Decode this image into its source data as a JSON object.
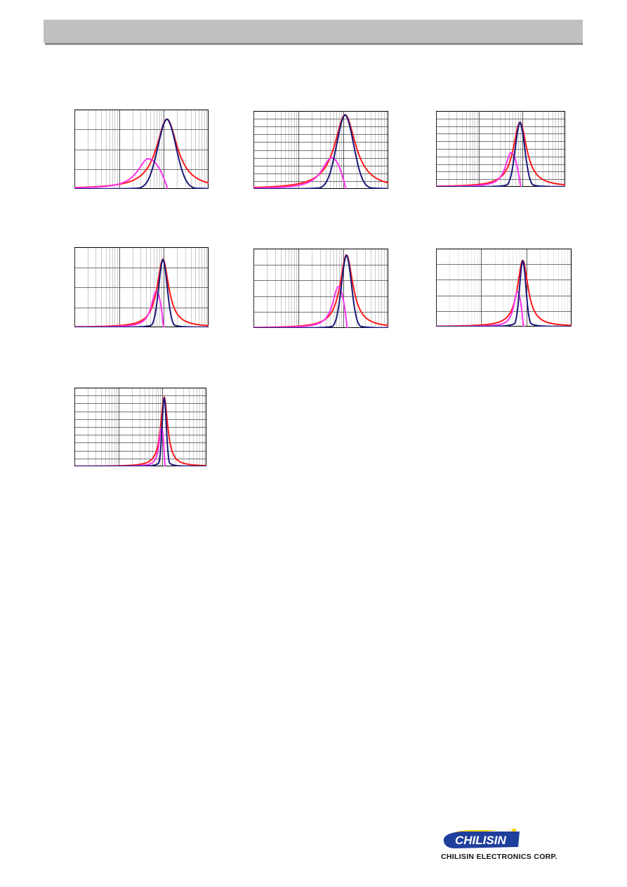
{
  "header": {
    "color": "#c0c0c0"
  },
  "colors": {
    "red": "#ff1a1a",
    "navy": "#1a1a7a",
    "magenta": "#ff33ee"
  },
  "logo": {
    "text": "CHILISIN",
    "caption": "CHILISIN ELECTRONICS CORP.",
    "brand_blue": "#1f3f9c",
    "brand_yellow": "#f7d117"
  },
  "chart_data": [
    {
      "type": "line",
      "title": "",
      "xlabel": "",
      "ylabel": "",
      "xscale": "log",
      "grid": true,
      "peak_x": 0.69,
      "peak_y": 0.88,
      "r_width": 0.09,
      "x_width": 0.065,
      "x_peak_x": 0.55,
      "x_peak_y": 0.38,
      "rows": 4,
      "minor": true
    },
    {
      "type": "line",
      "title": "",
      "xlabel": "",
      "ylabel": "",
      "xscale": "log",
      "grid": true,
      "peak_x": 0.68,
      "peak_y": 0.95,
      "r_width": 0.09,
      "x_width": 0.06,
      "x_peak_x": 0.58,
      "x_peak_y": 0.4,
      "rows": 10,
      "minor": true
    },
    {
      "type": "line",
      "title": "",
      "xlabel": "",
      "ylabel": "",
      "xscale": "log",
      "grid": true,
      "peak_x": 0.65,
      "peak_y": 0.85,
      "r_width": 0.06,
      "x_width": 0.035,
      "x_peak_x": 0.58,
      "x_peak_y": 0.45,
      "rows": 10,
      "minor": true
    },
    {
      "type": "line",
      "title": "",
      "xlabel": "",
      "ylabel": "",
      "xscale": "log",
      "grid": true,
      "peak_x": 0.66,
      "peak_y": 0.85,
      "r_width": 0.05,
      "x_width": 0.03,
      "x_peak_x": 0.61,
      "x_peak_y": 0.45,
      "rows": 4,
      "minor": true
    },
    {
      "type": "line",
      "title": "",
      "xlabel": "",
      "ylabel": "",
      "xscale": "log",
      "grid": true,
      "peak_x": 0.69,
      "peak_y": 0.92,
      "r_width": 0.055,
      "x_width": 0.035,
      "x_peak_x": 0.63,
      "x_peak_y": 0.52,
      "rows": 5,
      "minor": true
    },
    {
      "type": "line",
      "title": "",
      "xlabel": "",
      "ylabel": "",
      "xscale": "log",
      "grid": true,
      "peak_x": 0.64,
      "peak_y": 0.85,
      "r_width": 0.045,
      "x_width": 0.022,
      "x_peak_x": 0.6,
      "x_peak_y": 0.45,
      "rows": 5,
      "minor": false
    },
    {
      "type": "line",
      "title": "",
      "xlabel": "",
      "ylabel": "",
      "xscale": "log",
      "grid": true,
      "peak_x": 0.68,
      "peak_y": 0.88,
      "r_width": 0.03,
      "x_width": 0.015,
      "x_peak_x": 0.66,
      "x_peak_y": 0.5,
      "rows": 10,
      "minor": true
    }
  ]
}
